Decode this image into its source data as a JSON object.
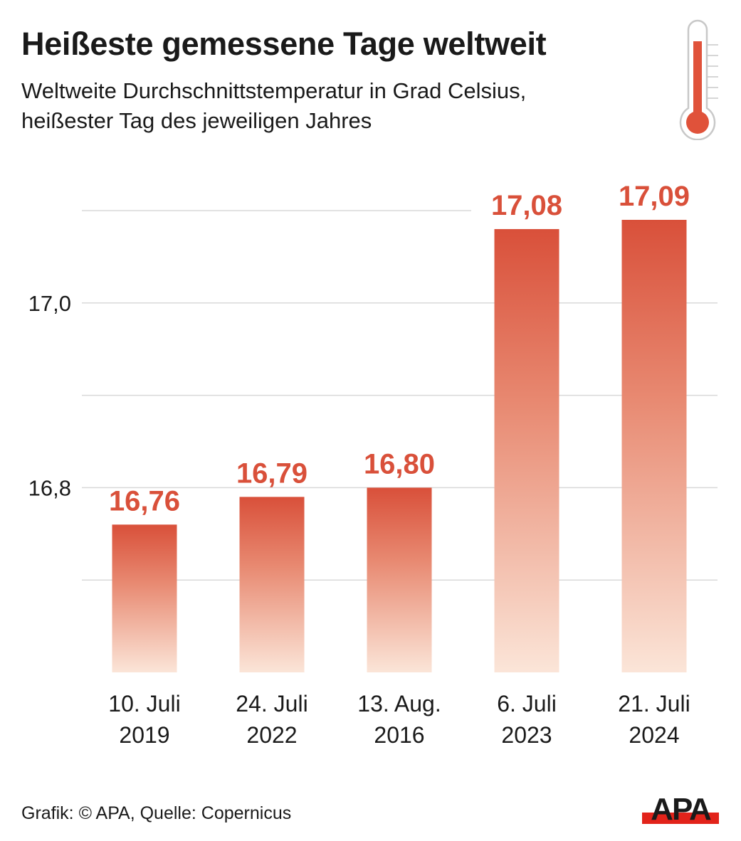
{
  "header": {
    "title": "Heißeste gemessene Tage weltweit",
    "subtitle_line1": "Weltweite Durchschnittstemperatur in Grad Celsius,",
    "subtitle_line2": "heißester Tag des jeweiligen Jahres",
    "icon": "thermometer-icon"
  },
  "footer": {
    "credit": "Grafik: © APA, Quelle: Copernicus",
    "logo_text": "APA"
  },
  "colors": {
    "bar_top": "#d9503a",
    "bar_bottom": "#fbe5d8",
    "value_label": "#d9503a",
    "gridline": "#d9d9d9",
    "text": "#1a1a1a",
    "logo_red": "#e2231a",
    "thermo_red": "#e0523a",
    "thermo_outline": "#c8c8c8"
  },
  "chart_data": {
    "type": "bar",
    "title": "Heißeste gemessene Tage weltweit",
    "subtitle": "Weltweite Durchschnittstemperatur in Grad Celsius, heißester Tag des jeweiligen Jahres",
    "xlabel": "",
    "ylabel": "",
    "categories": [
      [
        "10. Juli",
        "2019"
      ],
      [
        "24. Juli",
        "2022"
      ],
      [
        "13. Aug.",
        "2016"
      ],
      [
        "6. Juli",
        "2023"
      ],
      [
        "21. Juli",
        "2024"
      ]
    ],
    "values": [
      16.76,
      16.79,
      16.8,
      17.08,
      17.09
    ],
    "value_labels": [
      "16,76",
      "16,79",
      "16,80",
      "17,08",
      "17,09"
    ],
    "ylim": [
      16.6,
      17.1
    ],
    "gridlines": [
      16.7,
      16.8,
      16.9,
      17.0,
      17.1
    ],
    "yticks": [
      {
        "value": 16.8,
        "label": "16,8"
      },
      {
        "value": 17.0,
        "label": "17,0"
      }
    ],
    "grid": true,
    "legend": "none",
    "source": "Copernicus"
  }
}
